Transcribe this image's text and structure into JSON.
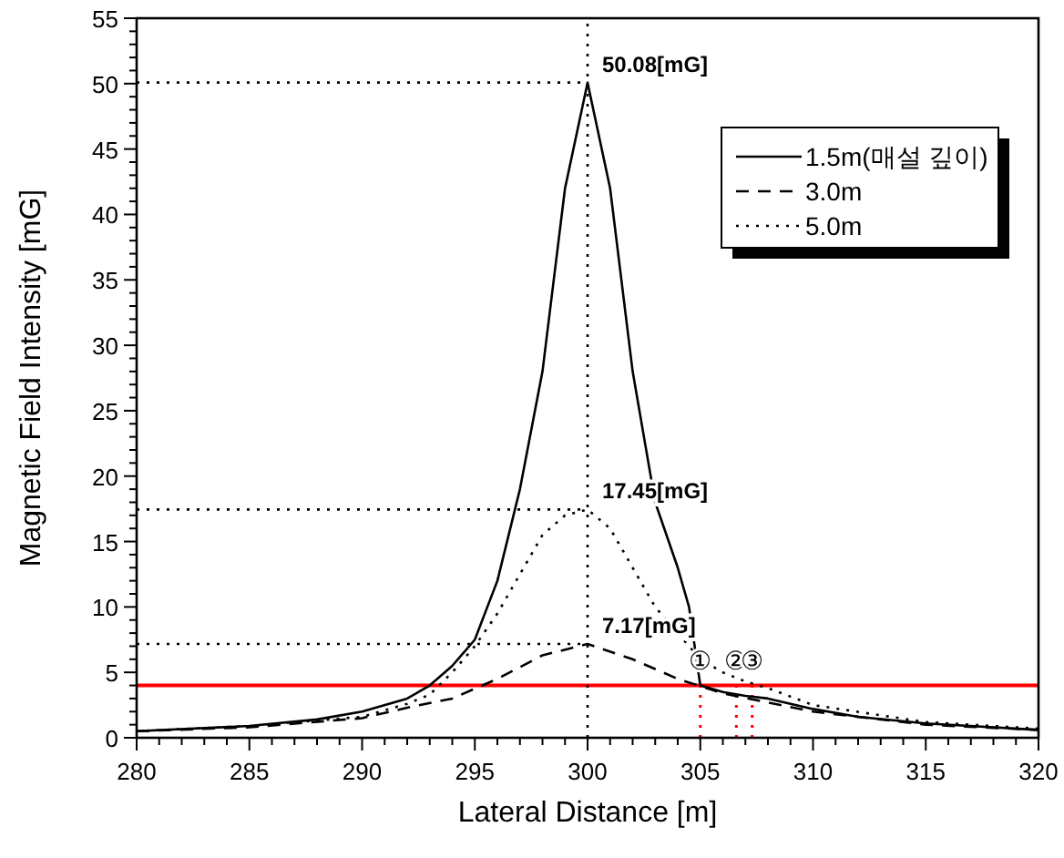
{
  "chart_data": {
    "type": "line",
    "xlabel": "Lateral Distance [m]",
    "ylabel": "Magnetic Field Intensity [mG]",
    "xlim": [
      280,
      320
    ],
    "ylim": [
      0,
      55
    ],
    "xticks": [
      280,
      285,
      290,
      295,
      300,
      305,
      310,
      315,
      320
    ],
    "yticks": [
      0,
      5,
      10,
      15,
      20,
      25,
      30,
      35,
      40,
      45,
      50,
      55
    ],
    "grid": false,
    "legend": "top right",
    "series": [
      {
        "name": "1.5m(매설 깊이)",
        "color": "#000000",
        "line_style": "solid",
        "x": [
          280,
          285,
          288,
          290,
          292,
          293,
          294,
          295,
          296,
          297,
          298,
          299,
          300,
          301,
          302,
          303,
          304,
          304.5,
          305,
          306,
          307,
          308,
          310,
          312,
          315,
          320
        ],
        "values": [
          0.5,
          0.9,
          1.4,
          2.0,
          3.0,
          4.0,
          5.5,
          7.5,
          12,
          19,
          28,
          42,
          50.08,
          42,
          28,
          18,
          13,
          10,
          4,
          3.5,
          3.2,
          3.0,
          2.2,
          1.6,
          1.1,
          0.6
        ]
      },
      {
        "name": "3.0m",
        "color": "#000000",
        "line_style": "dashed",
        "x": [
          280,
          285,
          290,
          292,
          294,
          296,
          298,
          300,
          302,
          304,
          306,
          308,
          310,
          315,
          320
        ],
        "values": [
          0.5,
          0.8,
          1.5,
          2.3,
          3.0,
          4.5,
          6.3,
          7.17,
          6.0,
          4.5,
          3.4,
          2.7,
          2.0,
          1.0,
          0.6
        ]
      },
      {
        "name": "5.0m",
        "color": "#000000",
        "line_style": "dotted",
        "x": [
          280,
          285,
          290,
          292,
          293,
          294,
          295,
          296,
          297,
          298,
          299,
          300,
          301,
          302,
          303,
          305,
          306,
          307,
          308,
          310,
          315,
          320
        ],
        "values": [
          0.5,
          0.9,
          1.6,
          2.6,
          3.3,
          5,
          7,
          9.5,
          12.5,
          15.5,
          17,
          17.45,
          16,
          13,
          10,
          6,
          5,
          4.3,
          3.8,
          2.5,
          1.2,
          0.7
        ]
      }
    ],
    "ref_lines": [
      {
        "axis": "y",
        "value": 4,
        "color": "#ff0000",
        "line_style": "solid"
      },
      {
        "axis": "x",
        "value": 300,
        "color": "#000000",
        "line_style": "dotted"
      }
    ],
    "annotations": [
      {
        "text": "50.08[mG]",
        "x": 300,
        "y": 50.08
      },
      {
        "text": "17.45[mG]",
        "x": 300,
        "y": 17.45
      },
      {
        "text": "7.17[mG]",
        "x": 300,
        "y": 7.17
      },
      {
        "text": "①",
        "x": 305,
        "y": 4
      },
      {
        "text": "②",
        "x": 306.6,
        "y": 4
      },
      {
        "text": "③",
        "x": 307.3,
        "y": 4
      }
    ]
  }
}
